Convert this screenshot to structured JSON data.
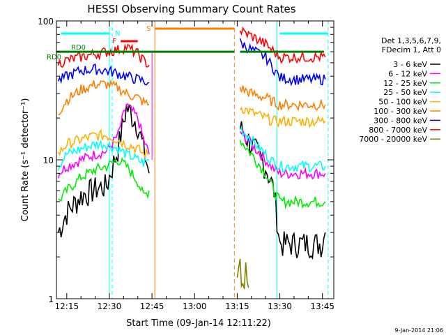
{
  "chart_data": {
    "type": "line",
    "title": "HESSI Observing Summary Count Rates",
    "xlabel": "Start Time (09-Jan-14 12:11:22)",
    "ylabel": "Count Rate (s⁻¹ detector⁻¹)",
    "y_scale": "log",
    "ylim": [
      1,
      100
    ],
    "xlim": [
      "12:11:22",
      "13:49:00"
    ],
    "x_ticks": [
      "12:15",
      "12:30",
      "12:45",
      "13:00",
      "13:15",
      "13:30",
      "13:45"
    ],
    "y_ticks": [
      "1",
      "10",
      "100"
    ],
    "legend_header": [
      "Det 1,3,5,6,7,9,",
      "FDecim 1, Att 0"
    ],
    "legend_position": "right",
    "date_stamp": "9-Jan-2014 21:06",
    "series": [
      {
        "name": "3 - 6 keV",
        "color": "#000000",
        "x": [
          "12:12",
          "12:15",
          "12:20",
          "12:25",
          "12:29",
          "12:33",
          "12:36",
          "12:40",
          "12:42",
          "12:44",
          "13:16",
          "13:20",
          "13:25",
          "13:28",
          "13:30",
          "13:35",
          "13:40",
          "13:45",
          "13:46"
        ],
        "y": [
          3.0,
          4.2,
          5.5,
          6.2,
          6.5,
          12,
          24,
          18,
          12,
          8,
          17,
          13,
          9,
          6,
          2.5,
          2.5,
          2.5,
          2.5,
          3.0
        ]
      },
      {
        "name": "6 - 12 keV",
        "color": "#ff00ff",
        "x": [
          "12:12",
          "12:15",
          "12:20",
          "12:25",
          "12:29",
          "12:33",
          "12:36",
          "12:40",
          "12:42",
          "12:44",
          "13:16",
          "13:20",
          "13:25",
          "13:28",
          "13:30",
          "13:35",
          "13:40",
          "13:45",
          "13:46"
        ],
        "y": [
          8,
          9,
          10,
          11,
          11.5,
          15,
          25,
          20,
          14,
          11,
          16,
          13,
          10,
          8.5,
          8,
          8,
          8,
          8,
          8
        ]
      },
      {
        "name": "12 - 25 keV",
        "color": "#00ee00",
        "x": [
          "12:12",
          "12:15",
          "12:20",
          "12:25",
          "12:29",
          "12:33",
          "12:36",
          "12:40",
          "12:42",
          "12:44",
          "13:16",
          "13:20",
          "13:25",
          "13:28",
          "13:30",
          "13:35",
          "13:40",
          "13:45",
          "13:46"
        ],
        "y": [
          5,
          6,
          7.5,
          8.5,
          9,
          10,
          9,
          7,
          5.5,
          6,
          14,
          11,
          8,
          6,
          5,
          5,
          5,
          5,
          5
        ]
      },
      {
        "name": "25 - 50 keV",
        "color": "#00ffff",
        "x": [
          "12:12",
          "12:15",
          "12:20",
          "12:25",
          "12:29",
          "12:33",
          "12:36",
          "12:40",
          "12:42",
          "12:44",
          "13:16",
          "13:20",
          "13:25",
          "13:28",
          "13:30",
          "13:35",
          "13:40",
          "13:45",
          "13:46"
        ],
        "y": [
          9,
          11,
          12,
          13,
          13,
          12,
          11,
          10,
          9.5,
          10,
          17,
          14,
          11,
          9.5,
          9,
          9,
          9,
          9,
          9
        ]
      },
      {
        "name": "50 - 100 keV",
        "color": "#ffb000",
        "x": [
          "12:12",
          "12:15",
          "12:20",
          "12:25",
          "12:29",
          "12:33",
          "12:36",
          "12:40",
          "12:42",
          "12:44",
          "13:16",
          "13:20",
          "13:25",
          "13:28",
          "13:30",
          "13:35",
          "13:40",
          "13:45",
          "13:46"
        ],
        "y": [
          11,
          13,
          14,
          15,
          15,
          14,
          13,
          12,
          11,
          11,
          24,
          22,
          20,
          19,
          19,
          19,
          19,
          19,
          19
        ]
      },
      {
        "name": "100 - 300 keV",
        "color": "#ff7f00",
        "x": [
          "12:12",
          "12:15",
          "12:20",
          "12:25",
          "12:29",
          "12:33",
          "12:36",
          "12:40",
          "12:42",
          "12:44",
          "13:16",
          "13:20",
          "13:25",
          "13:28",
          "13:30",
          "13:35",
          "13:40",
          "13:45",
          "13:46"
        ],
        "y": [
          22,
          27,
          32,
          35,
          35,
          33,
          30,
          28,
          26,
          25,
          33,
          30,
          28,
          26,
          25,
          25,
          25,
          25,
          25
        ]
      },
      {
        "name": "300 - 800 keV",
        "color": "#0000ff",
        "x": [
          "12:12",
          "12:15",
          "12:20",
          "12:25",
          "12:29",
          "12:33",
          "12:36",
          "12:40",
          "12:42",
          "12:44",
          "13:16",
          "13:20",
          "13:25",
          "13:28",
          "13:30",
          "13:35",
          "13:40",
          "13:45",
          "13:46"
        ],
        "y": [
          37,
          40,
          44,
          45,
          44,
          42,
          40,
          38,
          37,
          36,
          70,
          62,
          55,
          45,
          39,
          38,
          38,
          38,
          38
        ]
      },
      {
        "name": "800 - 7000 keV",
        "color": "#ff0000",
        "x": [
          "12:12",
          "12:15",
          "12:20",
          "12:25",
          "12:29",
          "12:33",
          "12:36",
          "12:40",
          "12:42",
          "12:44",
          "13:16",
          "13:20",
          "13:25",
          "13:28",
          "13:30",
          "13:35",
          "13:40",
          "13:45",
          "13:46"
        ],
        "y": [
          50,
          52,
          55,
          58,
          60,
          62,
          65,
          58,
          52,
          48,
          85,
          78,
          68,
          60,
          55,
          55,
          55,
          55,
          55
        ]
      },
      {
        "name": "7000 - 20000 keV",
        "color": "#808000",
        "x": [
          "13:15",
          "13:16",
          "13:17",
          "13:18",
          "13:19"
        ],
        "y": [
          1.3,
          1.6,
          1.2,
          1.5,
          1.2
        ]
      }
    ],
    "annotations": {
      "rd0_level": 60,
      "rd0_labels": [
        "RD0",
        "RD0"
      ],
      "n_label": "N",
      "f_label": "F",
      "s_label": "S",
      "n_bars": [
        [
          "12:13",
          "12:30"
        ],
        [
          "13:30",
          "13:47"
        ]
      ],
      "s_bar": [
        "12:46",
        "13:14"
      ],
      "f_bar": [
        "12:34",
        "12:40"
      ],
      "cyan_vlines": [
        "12:30",
        "13:29"
      ],
      "cyan_dashed_vlines": [
        "12:31",
        "13:47"
      ],
      "orange_vlines": [
        "12:46",
        "13:14"
      ],
      "magenta_vline": "12:45"
    }
  }
}
